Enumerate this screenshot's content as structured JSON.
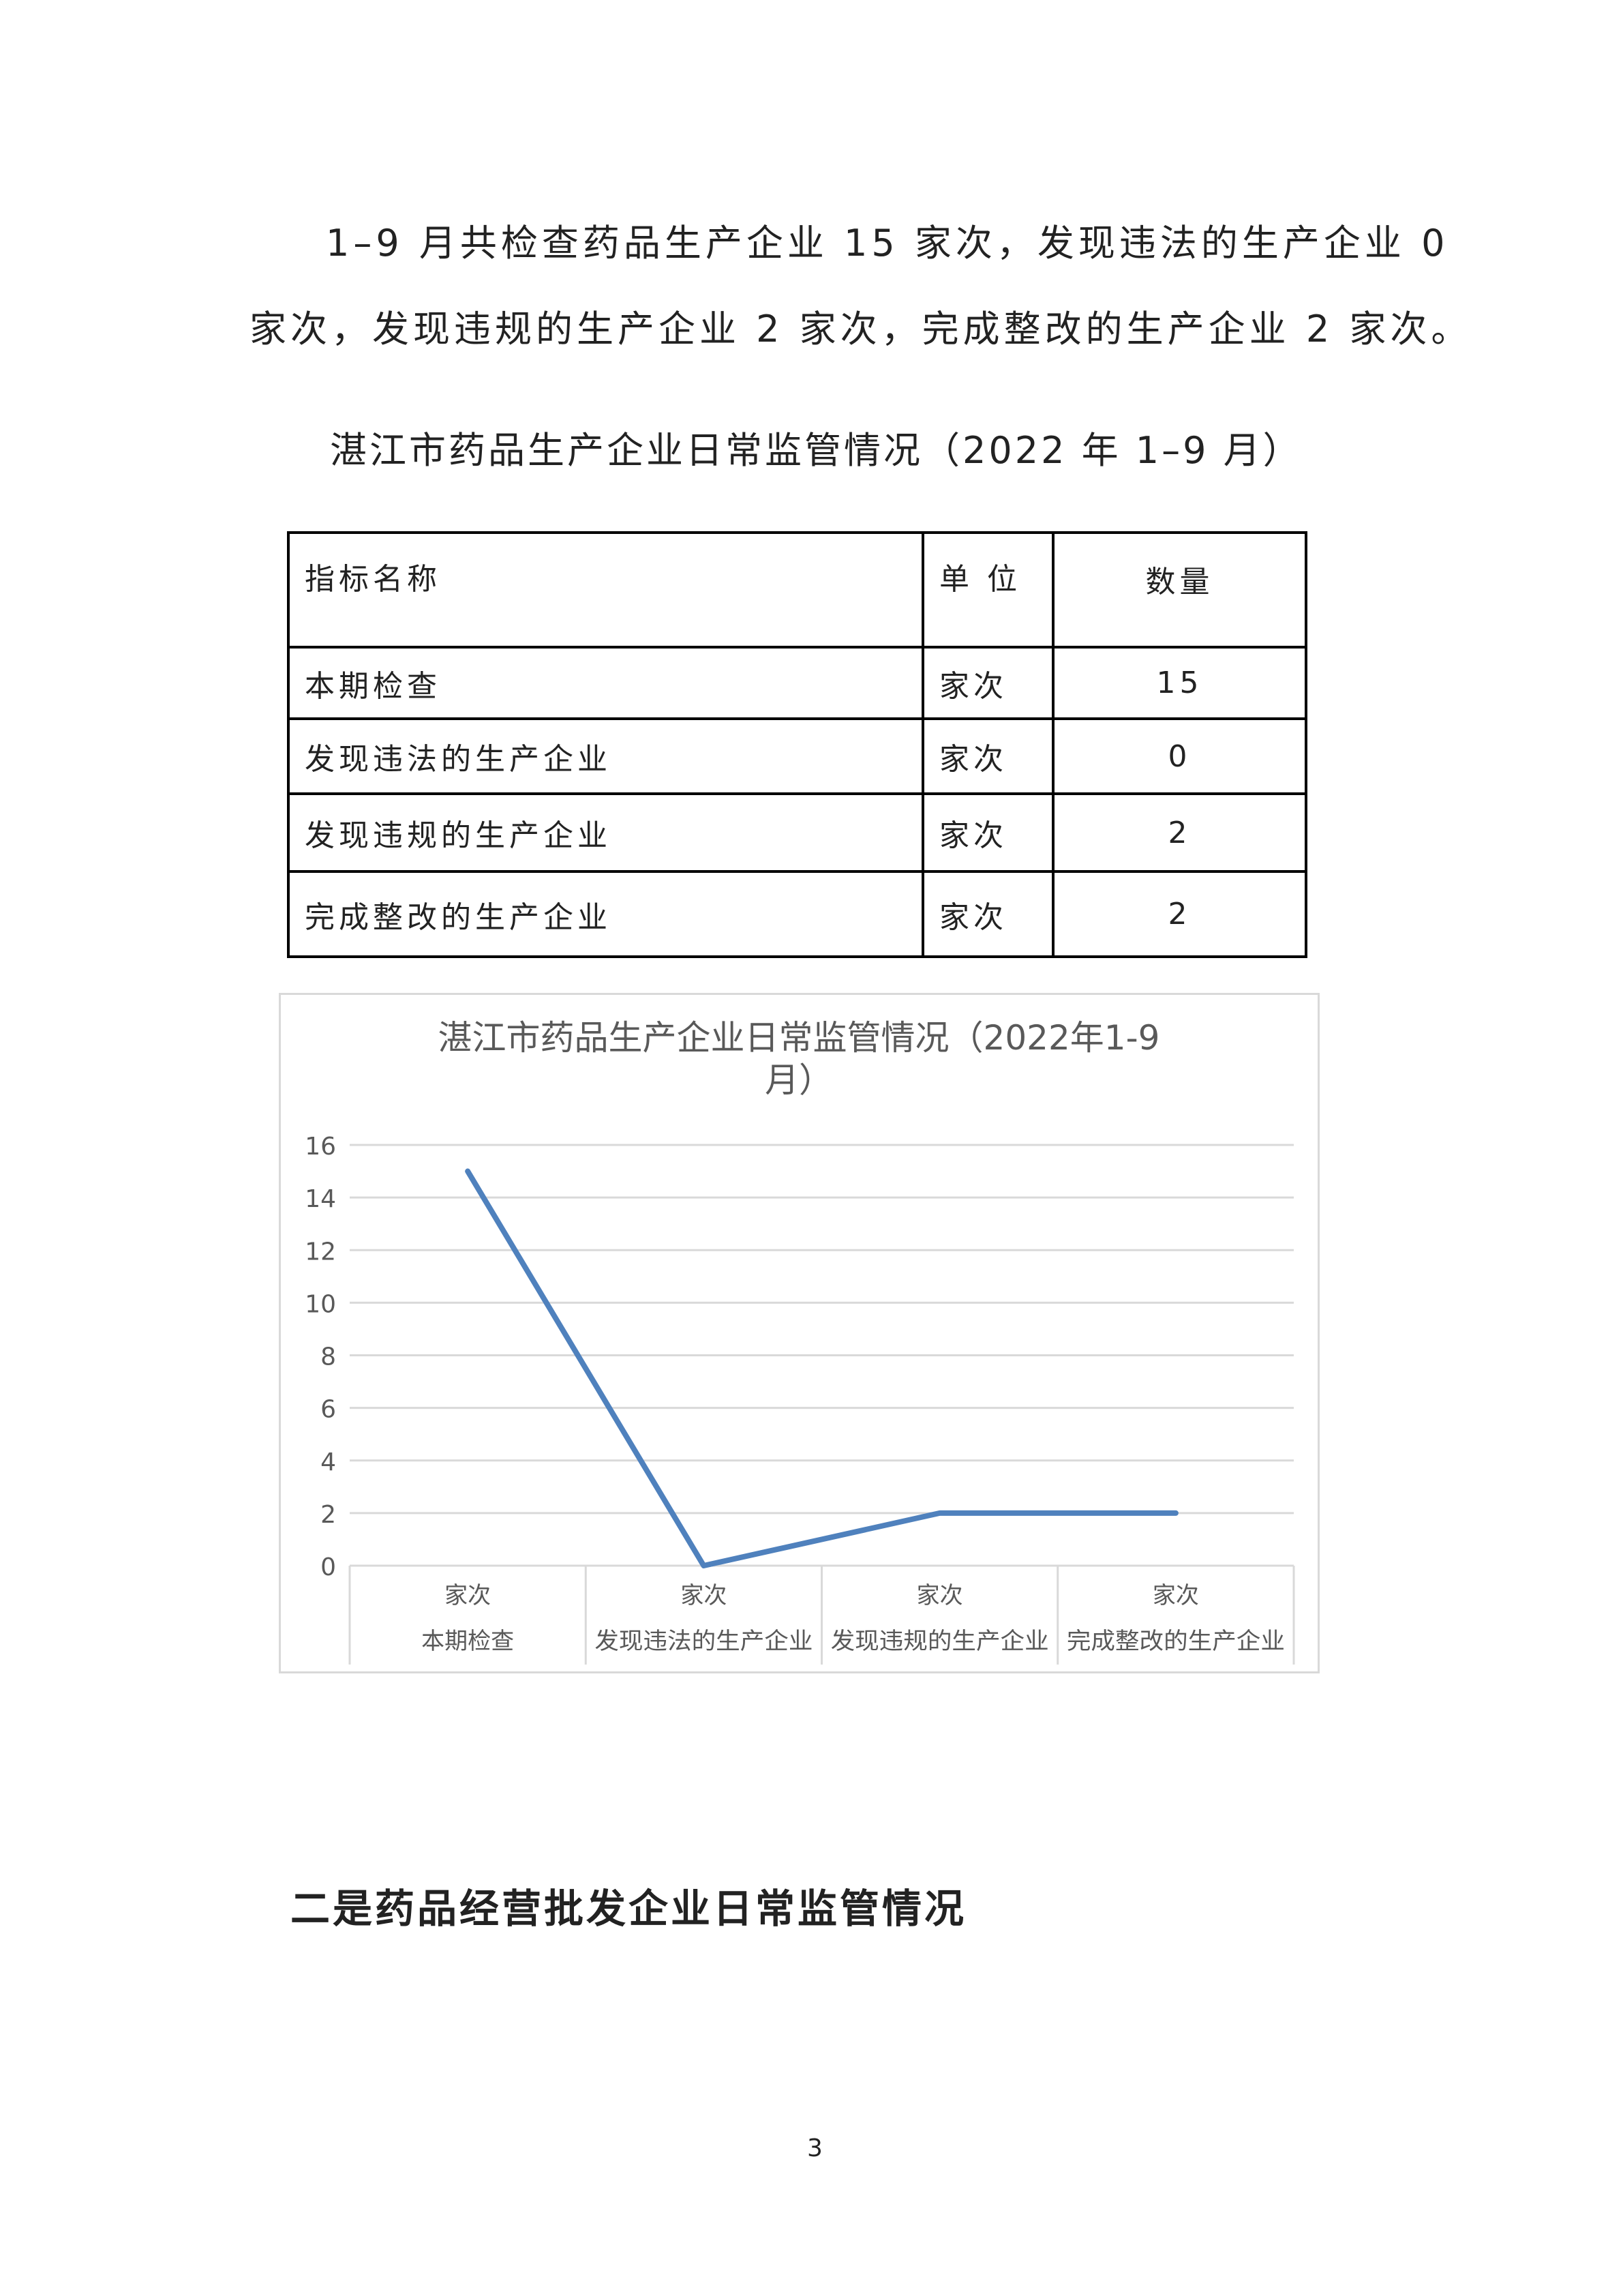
{
  "paragraph": {
    "line1": "1–9 月共检查药品生产企业 15 家次，发现违法的生产企业 0",
    "line2": "家次，发现违规的生产企业 2 家次，完成整改的生产企业 2 家次。"
  },
  "table_title": "湛江市药品生产企业日常监管情况（2022 年 1–9 月）",
  "table": {
    "headers": [
      "指标名称",
      "单 位",
      "数量"
    ],
    "rows": [
      [
        "本期检查",
        "家次",
        "15"
      ],
      [
        "发现违法的生产企业",
        "家次",
        "0"
      ],
      [
        "发现违规的生产企业",
        "家次",
        "2"
      ],
      [
        "完成整改的生产企业",
        "家次",
        "2"
      ]
    ]
  },
  "chart_data": {
    "type": "line",
    "title_line1": "湛江市药品生产企业日常监管情况（2022年1-9",
    "title_line2": "月）",
    "categories": [
      {
        "unit": "家次",
        "name": "本期检查"
      },
      {
        "unit": "家次",
        "name": "发现违法的生产企业"
      },
      {
        "unit": "家次",
        "name": "发现违规的生产企业"
      },
      {
        "unit": "家次",
        "name": "完成整改的生产企业"
      }
    ],
    "values": [
      15,
      0,
      2,
      2
    ],
    "ylim": [
      0,
      16
    ],
    "yticks": [
      "0",
      "2",
      "4",
      "6",
      "8",
      "10",
      "12",
      "14",
      "16"
    ],
    "grid": true,
    "line_color": "#4f81bd",
    "grid_color": "#d9d9d9"
  },
  "heading": "二是药品经营批发企业日常监管情况",
  "page_number": "3"
}
